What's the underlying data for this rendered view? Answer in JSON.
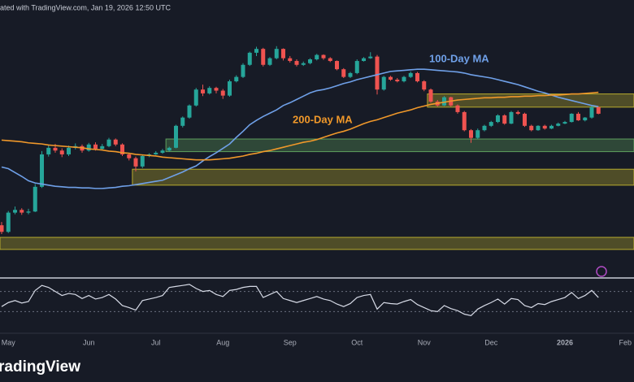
{
  "header": "ated with TradingView.com, Jan 19, 2026 12:50 UTC",
  "logo": "radingView",
  "chart_data": {
    "type": "candlestick",
    "categories": [
      null,
      "May",
      null,
      null,
      null,
      null,
      null,
      null,
      null,
      null,
      null,
      null,
      null,
      "Jun",
      null,
      null,
      null,
      null,
      null,
      null,
      null,
      null,
      null,
      "Jul",
      null,
      null,
      null,
      null,
      null,
      null,
      null,
      null,
      null,
      "Aug",
      null,
      null,
      null,
      null,
      null,
      null,
      null,
      null,
      null,
      "Sep",
      null,
      null,
      null,
      null,
      null,
      null,
      null,
      null,
      null,
      "Oct",
      null,
      null,
      null,
      null,
      null,
      null,
      null,
      null,
      null,
      "Nov",
      null,
      null,
      null,
      null,
      null,
      null,
      null,
      null,
      null,
      "Dec",
      null,
      null,
      null,
      null,
      null,
      null,
      null,
      null,
      null,
      null,
      "2026",
      null,
      null,
      null,
      null,
      null,
      null,
      null,
      null,
      "Feb"
    ],
    "candles": [
      [
        1700,
        1760,
        1540,
        1580
      ],
      [
        1580,
        1960,
        1560,
        1930
      ],
      [
        1930,
        2040,
        1900,
        1980
      ],
      [
        1980,
        2010,
        1890,
        1930
      ],
      [
        1930,
        2000,
        1900,
        1950
      ],
      [
        1950,
        2450,
        1940,
        2400
      ],
      [
        2400,
        3050,
        2380,
        2990
      ],
      [
        2990,
        3160,
        2950,
        3110
      ],
      [
        3110,
        3180,
        3020,
        3060
      ],
      [
        3060,
        3100,
        2940,
        2990
      ],
      [
        2990,
        3150,
        2960,
        3110
      ],
      [
        3110,
        3190,
        3080,
        3140
      ],
      [
        3140,
        3170,
        3020,
        3060
      ],
      [
        3060,
        3200,
        3040,
        3170
      ],
      [
        3170,
        3210,
        3060,
        3090
      ],
      [
        3090,
        3180,
        3060,
        3140
      ],
      [
        3140,
        3290,
        3120,
        3260
      ],
      [
        3260,
        3280,
        3140,
        3170
      ],
      [
        3170,
        3190,
        2960,
        2990
      ],
      [
        2990,
        3020,
        2880,
        2920
      ],
      [
        2920,
        2950,
        2680,
        2770
      ],
      [
        2770,
        2990,
        2740,
        2960
      ],
      [
        2960,
        3010,
        2940,
        2990
      ],
      [
        2990,
        3050,
        2980,
        3020
      ],
      [
        3020,
        3090,
        3000,
        3060
      ],
      [
        3060,
        3130,
        3040,
        3110
      ],
      [
        3110,
        3530,
        3100,
        3510
      ],
      [
        3510,
        3680,
        3480,
        3660
      ],
      [
        3660,
        3900,
        3640,
        3880
      ],
      [
        3880,
        4200,
        3860,
        4170
      ],
      [
        4170,
        4260,
        4050,
        4100
      ],
      [
        4100,
        4230,
        4080,
        4200
      ],
      [
        4200,
        4220,
        4100,
        4150
      ],
      [
        4150,
        4180,
        4000,
        4060
      ],
      [
        4060,
        4350,
        4040,
        4320
      ],
      [
        4320,
        4430,
        4300,
        4400
      ],
      [
        4400,
        4650,
        4380,
        4620
      ],
      [
        4620,
        4860,
        4600,
        4840
      ],
      [
        4840,
        4950,
        4780,
        4910
      ],
      [
        4910,
        4930,
        4590,
        4620
      ],
      [
        4620,
        4760,
        4600,
        4740
      ],
      [
        4740,
        4960,
        4720,
        4910
      ],
      [
        4910,
        4920,
        4700,
        4740
      ],
      [
        4740,
        4780,
        4660,
        4690
      ],
      [
        4690,
        4720,
        4590,
        4620
      ],
      [
        4620,
        4680,
        4600,
        4650
      ],
      [
        4650,
        4740,
        4630,
        4720
      ],
      [
        4720,
        4820,
        4700,
        4800
      ],
      [
        4800,
        4810,
        4710,
        4740
      ],
      [
        4740,
        4760,
        4670,
        4690
      ],
      [
        4690,
        4700,
        4520,
        4540
      ],
      [
        4540,
        4560,
        4380,
        4400
      ],
      [
        4400,
        4490,
        4380,
        4470
      ],
      [
        4470,
        4720,
        4450,
        4690
      ],
      [
        4690,
        4760,
        4680,
        4740
      ],
      [
        4740,
        4850,
        4730,
        4770
      ],
      [
        4770,
        4800,
        4080,
        4170
      ],
      [
        4170,
        4420,
        4150,
        4400
      ],
      [
        4400,
        4420,
        4330,
        4350
      ],
      [
        4350,
        4380,
        4300,
        4320
      ],
      [
        4320,
        4420,
        4300,
        4400
      ],
      [
        4400,
        4500,
        4380,
        4470
      ],
      [
        4470,
        4490,
        4300,
        4320
      ],
      [
        4320,
        4340,
        4140,
        4170
      ],
      [
        4170,
        4190,
        3930,
        3950
      ],
      [
        3950,
        3980,
        3860,
        3880
      ],
      [
        3880,
        4050,
        3870,
        4030
      ],
      [
        4030,
        4040,
        3860,
        3880
      ],
      [
        3880,
        3900,
        3730,
        3760
      ],
      [
        3760,
        3780,
        3410,
        3430
      ],
      [
        3430,
        3450,
        3200,
        3290
      ],
      [
        3290,
        3460,
        3270,
        3430
      ],
      [
        3430,
        3530,
        3410,
        3510
      ],
      [
        3510,
        3600,
        3490,
        3580
      ],
      [
        3580,
        3720,
        3560,
        3700
      ],
      [
        3700,
        3720,
        3530,
        3550
      ],
      [
        3550,
        3780,
        3540,
        3760
      ],
      [
        3760,
        3790,
        3710,
        3730
      ],
      [
        3730,
        3750,
        3490,
        3510
      ],
      [
        3510,
        3530,
        3410,
        3430
      ],
      [
        3430,
        3520,
        3420,
        3510
      ],
      [
        3510,
        3530,
        3440,
        3460
      ],
      [
        3460,
        3530,
        3450,
        3510
      ],
      [
        3510,
        3570,
        3500,
        3550
      ],
      [
        3550,
        3600,
        3540,
        3580
      ],
      [
        3580,
        3740,
        3570,
        3730
      ],
      [
        3730,
        3760,
        3600,
        3610
      ],
      [
        3610,
        3670,
        3590,
        3660
      ],
      [
        3660,
        3870,
        3640,
        3850
      ],
      [
        3850,
        3860,
        3720,
        3730
      ],
      null,
      null,
      null,
      null
    ],
    "up_color": "#26a69a",
    "down_color": "#ef5350",
    "ylim": [
      800,
      5800
    ],
    "series": [
      {
        "name": "100-Day MA",
        "color": "#6fa0e8",
        "values": [
          2760,
          2730,
          2660,
          2590,
          2510,
          2470,
          2450,
          2430,
          2410,
          2400,
          2390,
          2390,
          2380,
          2380,
          2370,
          2370,
          2380,
          2390,
          2410,
          2420,
          2440,
          2460,
          2480,
          2500,
          2520,
          2570,
          2620,
          2670,
          2730,
          2780,
          2870,
          2950,
          3020,
          3100,
          3180,
          3300,
          3410,
          3530,
          3610,
          3680,
          3740,
          3800,
          3880,
          3930,
          3990,
          4050,
          4110,
          4150,
          4170,
          4200,
          4240,
          4280,
          4310,
          4350,
          4380,
          4410,
          4440,
          4470,
          4500,
          4510,
          4520,
          4530,
          4540,
          4540,
          4530,
          4520,
          4510,
          4500,
          4490,
          4470,
          4440,
          4420,
          4400,
          4380,
          4350,
          4320,
          4290,
          4260,
          4220,
          4180,
          4140,
          4110,
          4070,
          4030,
          4000,
          3970,
          3940,
          3910,
          3880,
          3860,
          null,
          null,
          null,
          null
        ]
      },
      {
        "name": "200-Day MA",
        "color": "#f0982a",
        "values": [
          3250,
          3240,
          3230,
          3220,
          3200,
          3190,
          3180,
          3160,
          3150,
          3140,
          3130,
          3120,
          3110,
          3090,
          3080,
          3070,
          3050,
          3040,
          3020,
          3010,
          2990,
          2980,
          2970,
          2960,
          2940,
          2930,
          2920,
          2910,
          2900,
          2890,
          2890,
          2890,
          2900,
          2910,
          2920,
          2940,
          2960,
          2990,
          3010,
          3040,
          3060,
          3090,
          3120,
          3150,
          3180,
          3210,
          3230,
          3260,
          3300,
          3340,
          3380,
          3410,
          3450,
          3500,
          3550,
          3590,
          3620,
          3660,
          3700,
          3740,
          3770,
          3800,
          3840,
          3870,
          3900,
          3920,
          3940,
          3960,
          3980,
          3990,
          4000,
          4010,
          4020,
          4020,
          4030,
          4030,
          4040,
          4040,
          4050,
          4050,
          4060,
          4060,
          4070,
          4070,
          4080,
          4090,
          4090,
          4100,
          4110,
          4120,
          null,
          null,
          null,
          null
        ]
      }
    ],
    "zones": [
      {
        "start": 64,
        "top": 4090,
        "bottom": 3850,
        "color": "#b8ab2e"
      },
      {
        "start": 25,
        "top": 3270,
        "bottom": 3040,
        "color": "#5d9e5d"
      },
      {
        "start": 20,
        "top": 2720,
        "bottom": 2430,
        "color": "#b8ab2e"
      },
      {
        "start": 0,
        "top": 1480,
        "bottom": 1260,
        "color": "#b8ab2e"
      }
    ],
    "rsi": {
      "color": "#d6dae6",
      "ylim": [
        0,
        100
      ],
      "levels": [
        70,
        30
      ],
      "values": [
        40,
        48,
        52,
        47,
        50,
        72,
        82,
        78,
        70,
        62,
        66,
        64,
        56,
        62,
        55,
        58,
        64,
        55,
        42,
        38,
        33,
        52,
        55,
        58,
        62,
        78,
        80,
        82,
        84,
        76,
        70,
        72,
        64,
        60,
        72,
        74,
        78,
        80,
        80,
        58,
        64,
        70,
        56,
        52,
        48,
        52,
        56,
        60,
        55,
        52,
        45,
        40,
        46,
        58,
        62,
        64,
        35,
        48,
        46,
        45,
        50,
        54,
        44,
        38,
        32,
        30,
        42,
        36,
        32,
        25,
        22,
        35,
        42,
        48,
        55,
        45,
        56,
        54,
        42,
        38,
        46,
        44,
        50,
        54,
        58,
        68,
        56,
        62,
        72,
        58,
        null,
        null,
        null,
        null
      ]
    }
  }
}
